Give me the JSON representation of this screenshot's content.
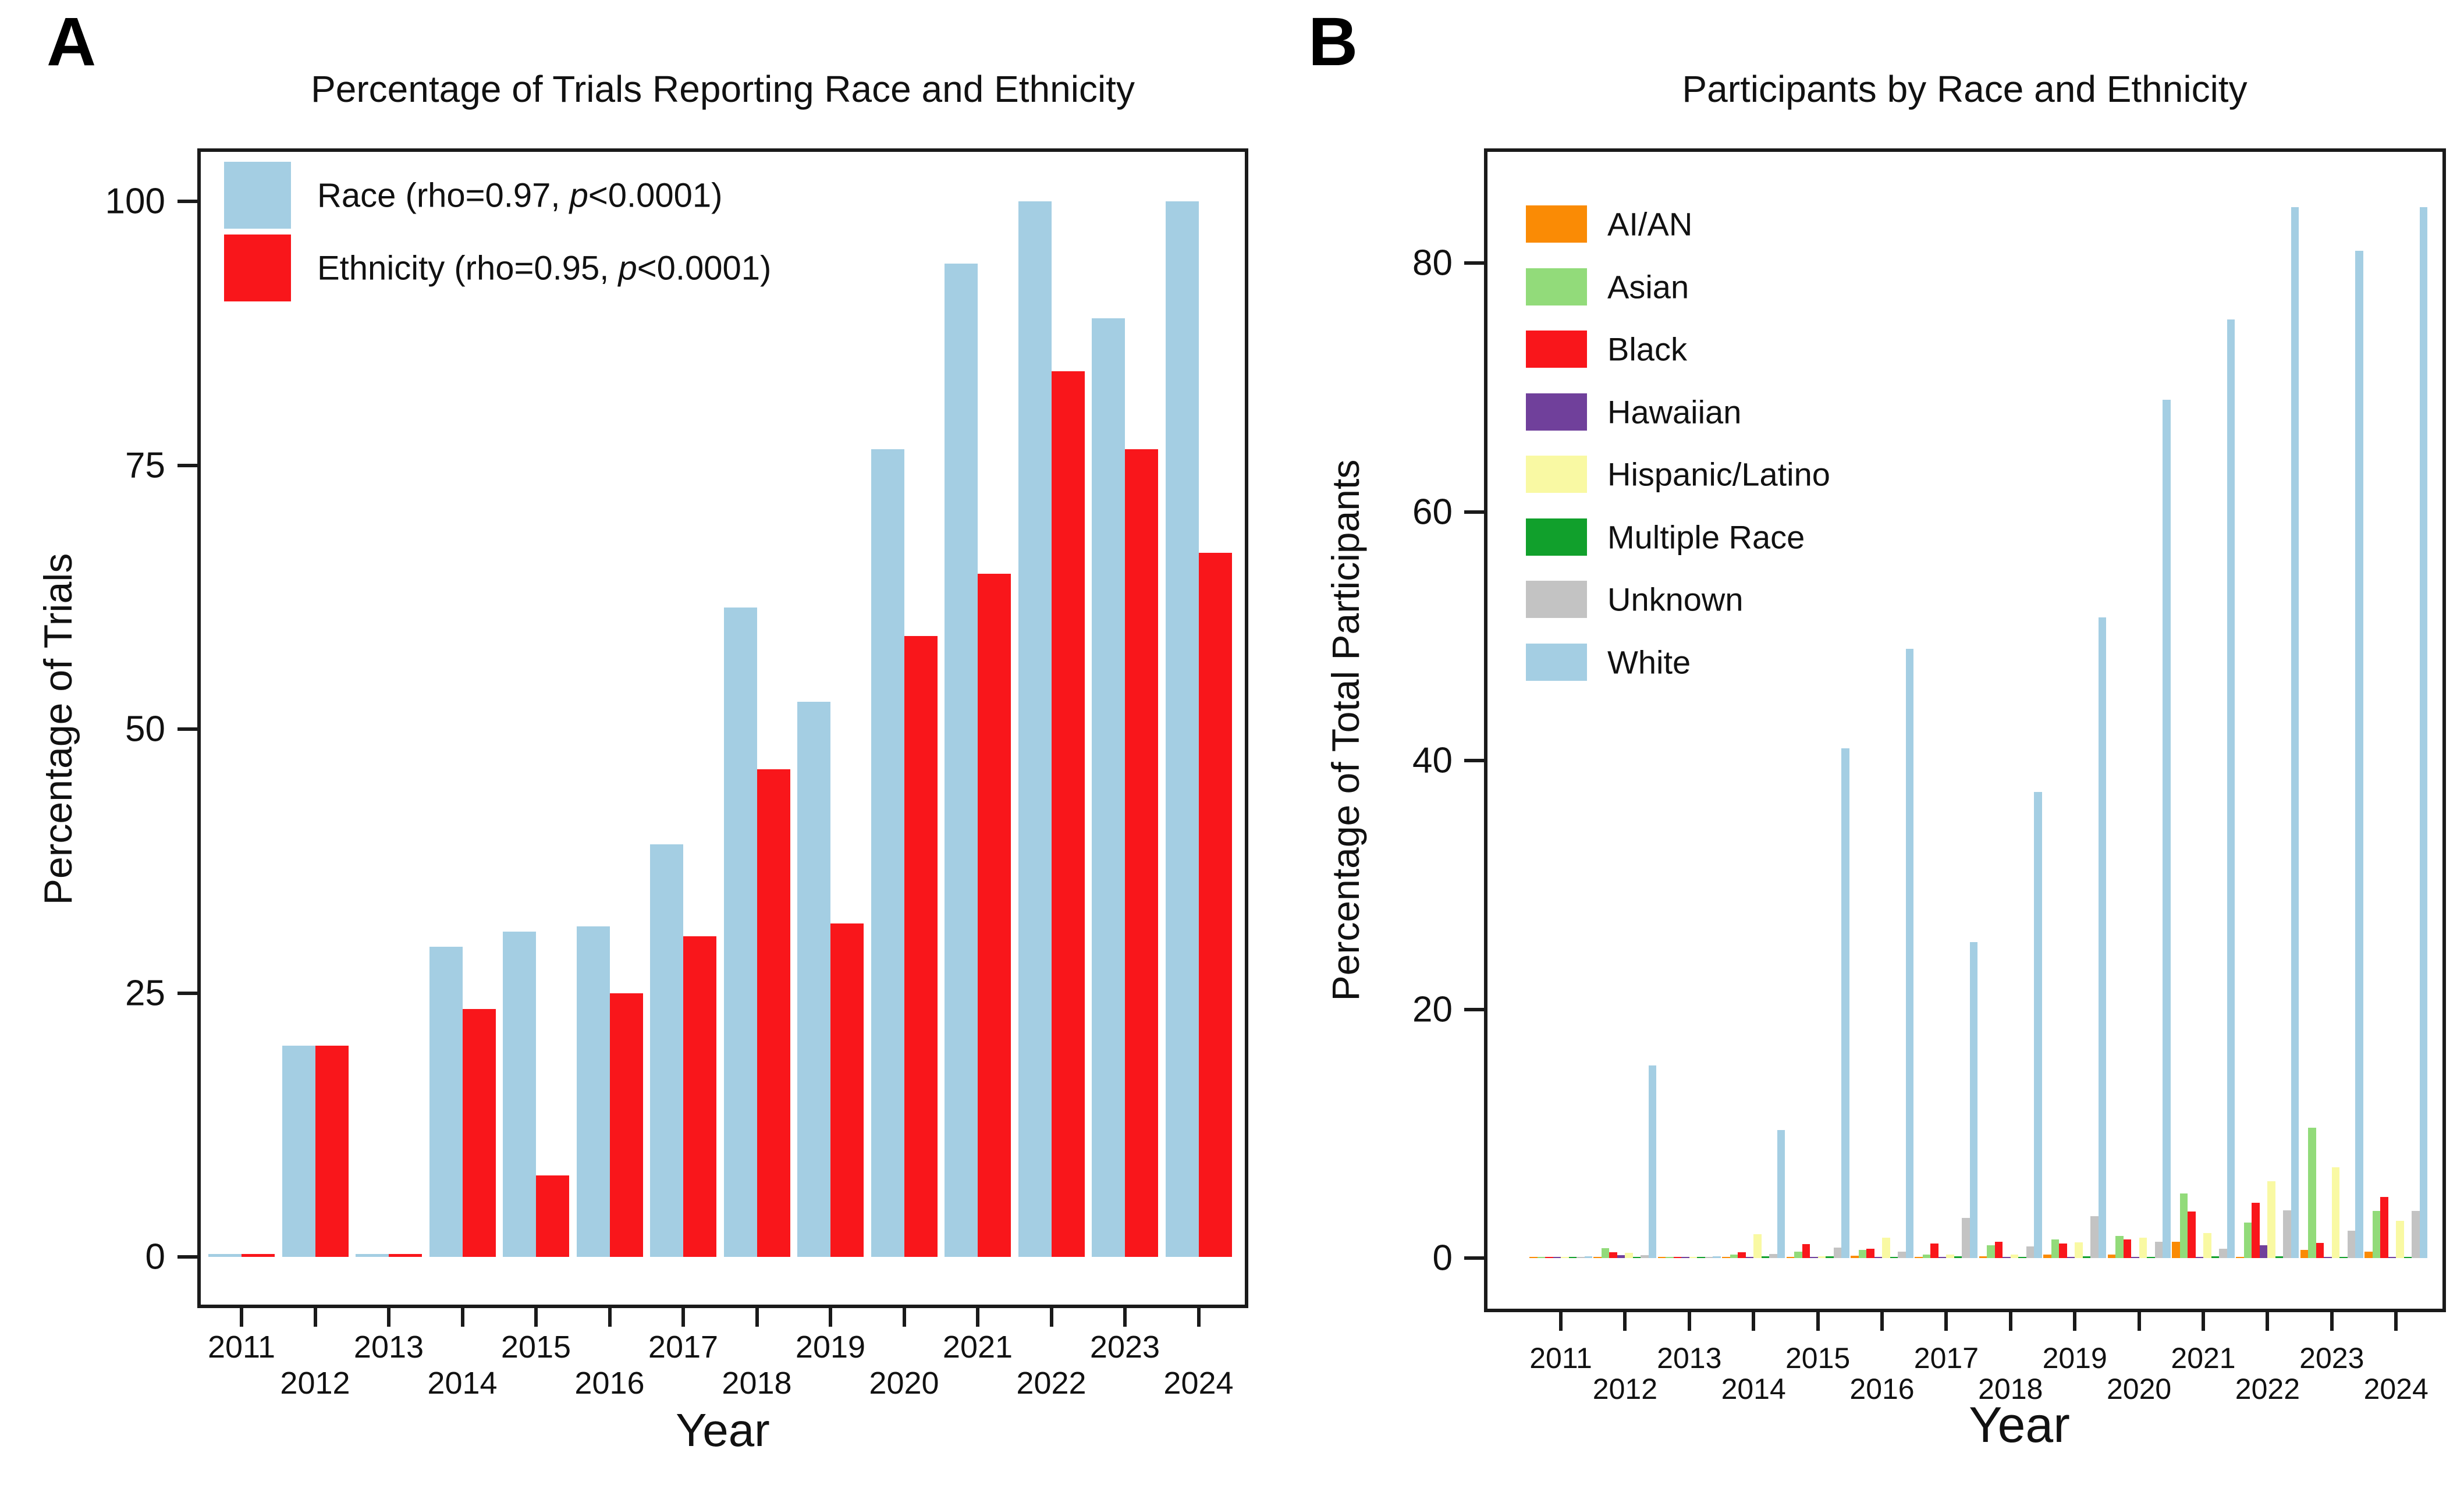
{
  "figure": {
    "panels": [
      {
        "id": "A",
        "letter": "A",
        "title": "Percentage of Trials Reporting Race and Ethnicity",
        "x_title": "Year",
        "y_title": "Percentage of Trials",
        "legend": [
          {
            "pre": "Race (rho=0.97, ",
            "italic": "p",
            "post": "<0.0001)",
            "color": "#A4CEE3"
          },
          {
            "pre": "Ethnicity (rho=0.95, ",
            "italic": "p",
            "post": "<0.0001)",
            "color": "#F9161B"
          }
        ]
      },
      {
        "id": "B",
        "letter": "B",
        "title": "Participants by Race and Ethnicity",
        "x_title": "Year",
        "y_title": "Percentage of Total Participants"
      }
    ]
  },
  "chart_data": [
    {
      "type": "bar",
      "panel": "A",
      "title": "Percentage of Trials Reporting Race and Ethnicity",
      "xlabel": "Year",
      "ylabel": "Percentage of Trials",
      "categories": [
        2011,
        2012,
        2013,
        2014,
        2015,
        2016,
        2017,
        2018,
        2019,
        2020,
        2021,
        2022,
        2023,
        2024
      ],
      "series": [
        {
          "name": "Race (rho=0.97, p<0.0001)",
          "color": "#A4CEE3",
          "values": [
            0.25,
            20,
            0.25,
            29.4,
            30.8,
            31.3,
            39.1,
            61.5,
            52.6,
            76.5,
            94.1,
            100,
            88.9,
            100
          ]
        },
        {
          "name": "Ethnicity (rho=0.95, p<0.0001)",
          "color": "#F9161B",
          "values": [
            0.25,
            20,
            0.25,
            23.5,
            7.7,
            25,
            30.4,
            46.2,
            31.6,
            58.8,
            64.7,
            83.9,
            76.5,
            66.7
          ]
        }
      ],
      "ylim": [
        0,
        100
      ],
      "yticks": [
        0,
        25,
        50,
        75,
        100
      ],
      "grid": false,
      "legend_position": "top-left"
    },
    {
      "type": "bar",
      "panel": "B",
      "title": "Participants by Race and Ethnicity",
      "xlabel": "Year",
      "ylabel": "Percentage of Total Participants",
      "categories": [
        2011,
        2012,
        2013,
        2014,
        2015,
        2016,
        2017,
        2018,
        2019,
        2020,
        2021,
        2022,
        2023,
        2024
      ],
      "series": [
        {
          "name": "AI/AN",
          "color": "#FA8B05",
          "values": [
            0.05,
            0.07,
            0.04,
            0.06,
            0.08,
            0.2,
            0.1,
            0.16,
            0.3,
            0.28,
            1.3,
            0.1,
            0.65,
            0.5
          ]
        },
        {
          "name": "Asian",
          "color": "#92DB7A",
          "values": [
            0.08,
            0.78,
            0.07,
            0.3,
            0.5,
            0.67,
            0.28,
            1.05,
            1.5,
            1.8,
            5.2,
            2.85,
            10.5,
            3.8
          ]
        },
        {
          "name": "Black",
          "color": "#F9161B",
          "values": [
            0.06,
            0.45,
            0.06,
            0.45,
            1.1,
            0.75,
            1.15,
            1.3,
            1.15,
            1.5,
            3.75,
            4.45,
            1.2,
            4.9
          ]
        },
        {
          "name": "Hawaiian",
          "color": "#70409B",
          "values": [
            0.04,
            0.25,
            0.04,
            0.1,
            0.08,
            0.1,
            0.08,
            0.05,
            0.06,
            0.06,
            0.1,
            1.05,
            0.1,
            0.06
          ]
        },
        {
          "name": "Hispanic/Latino",
          "color": "#F9F9A3",
          "values": [
            0.06,
            0.42,
            0.06,
            1.9,
            0.15,
            1.65,
            0.3,
            0.3,
            1.25,
            1.65,
            2.0,
            6.2,
            7.3,
            3.0
          ]
        },
        {
          "name": "Multiple Race",
          "color": "#11A02C",
          "values": [
            0.04,
            0.06,
            0.04,
            0.15,
            0.15,
            0.1,
            0.14,
            0.1,
            0.15,
            0.1,
            0.12,
            0.15,
            0.1,
            0.06
          ]
        },
        {
          "name": "Unknown",
          "color": "#C3C3C3",
          "values": [
            0.08,
            0.22,
            0.08,
            0.35,
            0.85,
            0.52,
            3.25,
            0.95,
            3.35,
            1.3,
            0.75,
            3.85,
            2.2,
            3.8
          ]
        },
        {
          "name": "White",
          "color": "#A4CEE3",
          "values": [
            0.12,
            15.5,
            0.12,
            10.3,
            41,
            49,
            25.4,
            37.5,
            51.5,
            69,
            75.5,
            84.5,
            81,
            84.5
          ]
        }
      ],
      "ylim": [
        0,
        88
      ],
      "yticks": [
        0,
        20,
        40,
        60,
        80
      ],
      "grid": false,
      "legend_position": "top-left"
    }
  ]
}
